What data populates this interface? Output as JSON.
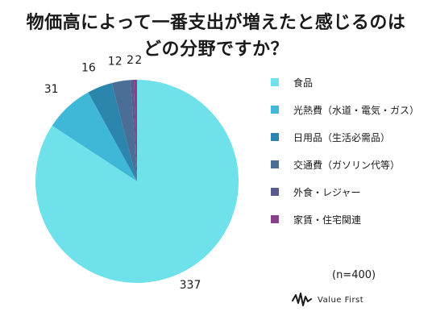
{
  "chart_data": {
    "type": "pie",
    "title_lines": [
      "物価高によって一番支出が増えたと感じるのは",
      "どの分野ですか？"
    ],
    "categories": [
      "食品",
      "光熱費（水道・電気・ガス）",
      "日用品（生活必需品）",
      "交通費（ガソリン代等）",
      "外食・レジャー",
      "家賃・住宅関連"
    ],
    "values": [
      337,
      31,
      16,
      12,
      2,
      2
    ],
    "colors": [
      "#6ee1ea",
      "#3fb8d7",
      "#2c85ad",
      "#4a6e96",
      "#5b5a8e",
      "#8a3f8a"
    ],
    "legend_position": "right",
    "note": "(n=400)"
  },
  "brand": {
    "name": "Value First"
  }
}
